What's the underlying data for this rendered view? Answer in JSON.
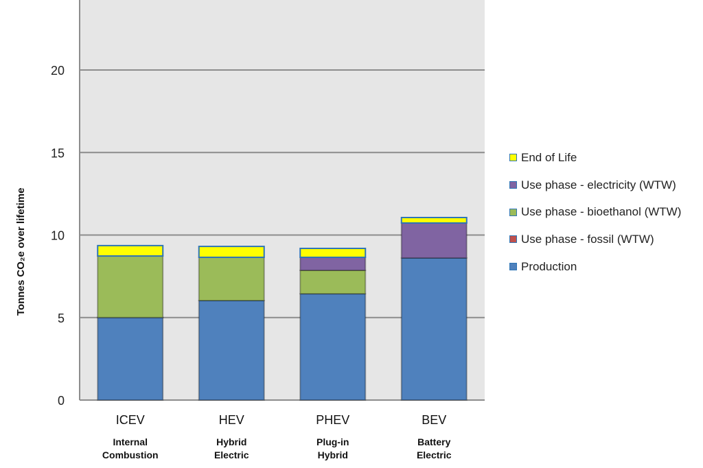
{
  "chart_data": {
    "type": "bar",
    "stacked": true,
    "categories": [
      "ICEV",
      "HEV",
      "PHEV",
      "BEV"
    ],
    "category_sublabels": [
      [
        "Internal",
        "Combustion"
      ],
      [
        "Hybrid",
        "Electric"
      ],
      [
        "Plug-in",
        "Hybrid"
      ],
      [
        "Battery",
        "Electric"
      ]
    ],
    "series": [
      {
        "name": "Production",
        "color": "#4f81bd",
        "values": [
          5.0,
          6.03,
          6.44,
          8.61
        ]
      },
      {
        "name": "Use phase - fossil (WTW)",
        "color": "#c0504d",
        "values": [
          0,
          0,
          0,
          0
        ]
      },
      {
        "name": "Use phase - bioethanol (WTW)",
        "color": "#9bbb59",
        "values": [
          3.73,
          2.62,
          1.42,
          0
        ]
      },
      {
        "name": "Use phase - electricity (WTW)",
        "color": "#8064a2",
        "values": [
          0,
          0,
          0.79,
          2.12
        ]
      },
      {
        "name": "End of Life",
        "color": "#ffff00",
        "values": [
          0.63,
          0.66,
          0.54,
          0.33
        ]
      }
    ],
    "ylabel": "Tonnes  CO₂e over lifetime",
    "yticks": [
      0,
      5,
      10,
      15,
      20
    ],
    "ylim": [
      0,
      25
    ],
    "grid": true,
    "legend_position": "right",
    "plot_background": "#e6e6e6"
  }
}
